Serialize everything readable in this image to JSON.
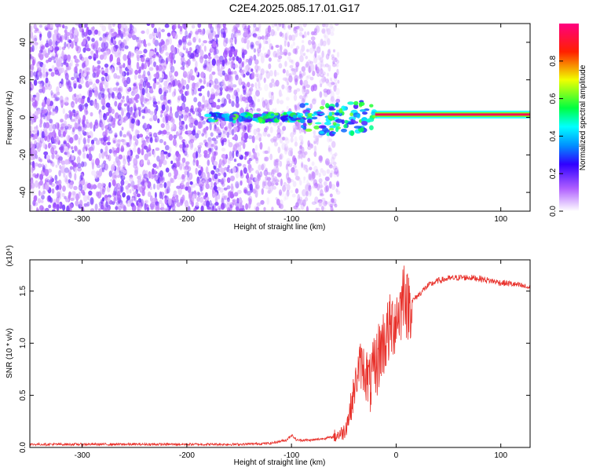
{
  "figure_title": "C2E4.2025.085.17.01.G17",
  "colors": {
    "snr_line": "#e8302a",
    "frame": "#000000",
    "background": "#ffffff"
  },
  "chart_data": [
    {
      "type": "heatmap",
      "title": "",
      "xlabel": "Height of straight line (km)",
      "ylabel": "Frequency (Hz)",
      "xlim": [
        -350,
        128
      ],
      "ylim": [
        -50,
        50
      ],
      "x_ticks": [
        -300,
        -200,
        -100,
        0,
        100
      ],
      "y_ticks": [
        -40,
        -20,
        0,
        20,
        40
      ],
      "colorbar": {
        "label": "Normalized spectral amplitude",
        "range": [
          0,
          1
        ],
        "ticks": [
          0.0,
          0.2,
          0.4,
          0.6,
          0.8
        ],
        "colormap": "white-purple-blue-cyan-green-yellow-red-magenta"
      },
      "features": [
        {
          "name": "noise",
          "x_range": [
            -350,
            -135
          ],
          "freq_range": [
            -50,
            50
          ],
          "amplitude": 0.1
        },
        {
          "name": "sparse-noise",
          "x_range": [
            -135,
            -55
          ],
          "freq_range": [
            -50,
            50
          ],
          "amplitude": 0.07
        },
        {
          "name": "carrier-line",
          "x_range": [
            -20,
            128
          ],
          "freq": 1.5,
          "amplitude": 0.95
        },
        {
          "name": "carrier-onset",
          "x_range": [
            -180,
            -20
          ],
          "freq": 0,
          "amplitude": 0.45
        }
      ]
    },
    {
      "type": "line",
      "title": "",
      "xlabel": "Height of straight line (km)",
      "ylabel": "SNR (10 * v/v)",
      "scale_label": "(x10⁴)",
      "xlim": [
        -350,
        128
      ],
      "ylim": [
        0,
        1.8
      ],
      "x_ticks": [
        -300,
        -200,
        -100,
        0,
        100
      ],
      "y_ticks": [
        0.0,
        0.5,
        1.0,
        1.5
      ],
      "y_tick_labels": [
        "0.0",
        "0.5",
        "1.0",
        "1.5"
      ],
      "series": [
        {
          "x": [
            -350,
            -300,
            -250,
            -200,
            -150,
            -120,
            -105,
            -100,
            -95,
            -80,
            -60,
            -50,
            -45,
            -40,
            -35,
            -30,
            -25,
            -20,
            -15,
            -10,
            -5,
            0,
            5,
            8,
            10,
            15,
            20,
            25,
            30,
            40,
            50,
            60,
            70,
            80,
            90,
            100,
            110,
            120,
            128
          ],
          "values": [
            0.03,
            0.03,
            0.03,
            0.03,
            0.03,
            0.04,
            0.07,
            0.12,
            0.07,
            0.07,
            0.1,
            0.15,
            0.3,
            0.55,
            0.8,
            0.75,
            0.6,
            0.75,
            0.95,
            1.05,
            1.15,
            1.25,
            1.35,
            1.6,
            1.35,
            1.4,
            1.45,
            1.5,
            1.55,
            1.6,
            1.62,
            1.63,
            1.63,
            1.62,
            1.6,
            1.58,
            1.57,
            1.55,
            1.53
          ]
        }
      ]
    }
  ]
}
